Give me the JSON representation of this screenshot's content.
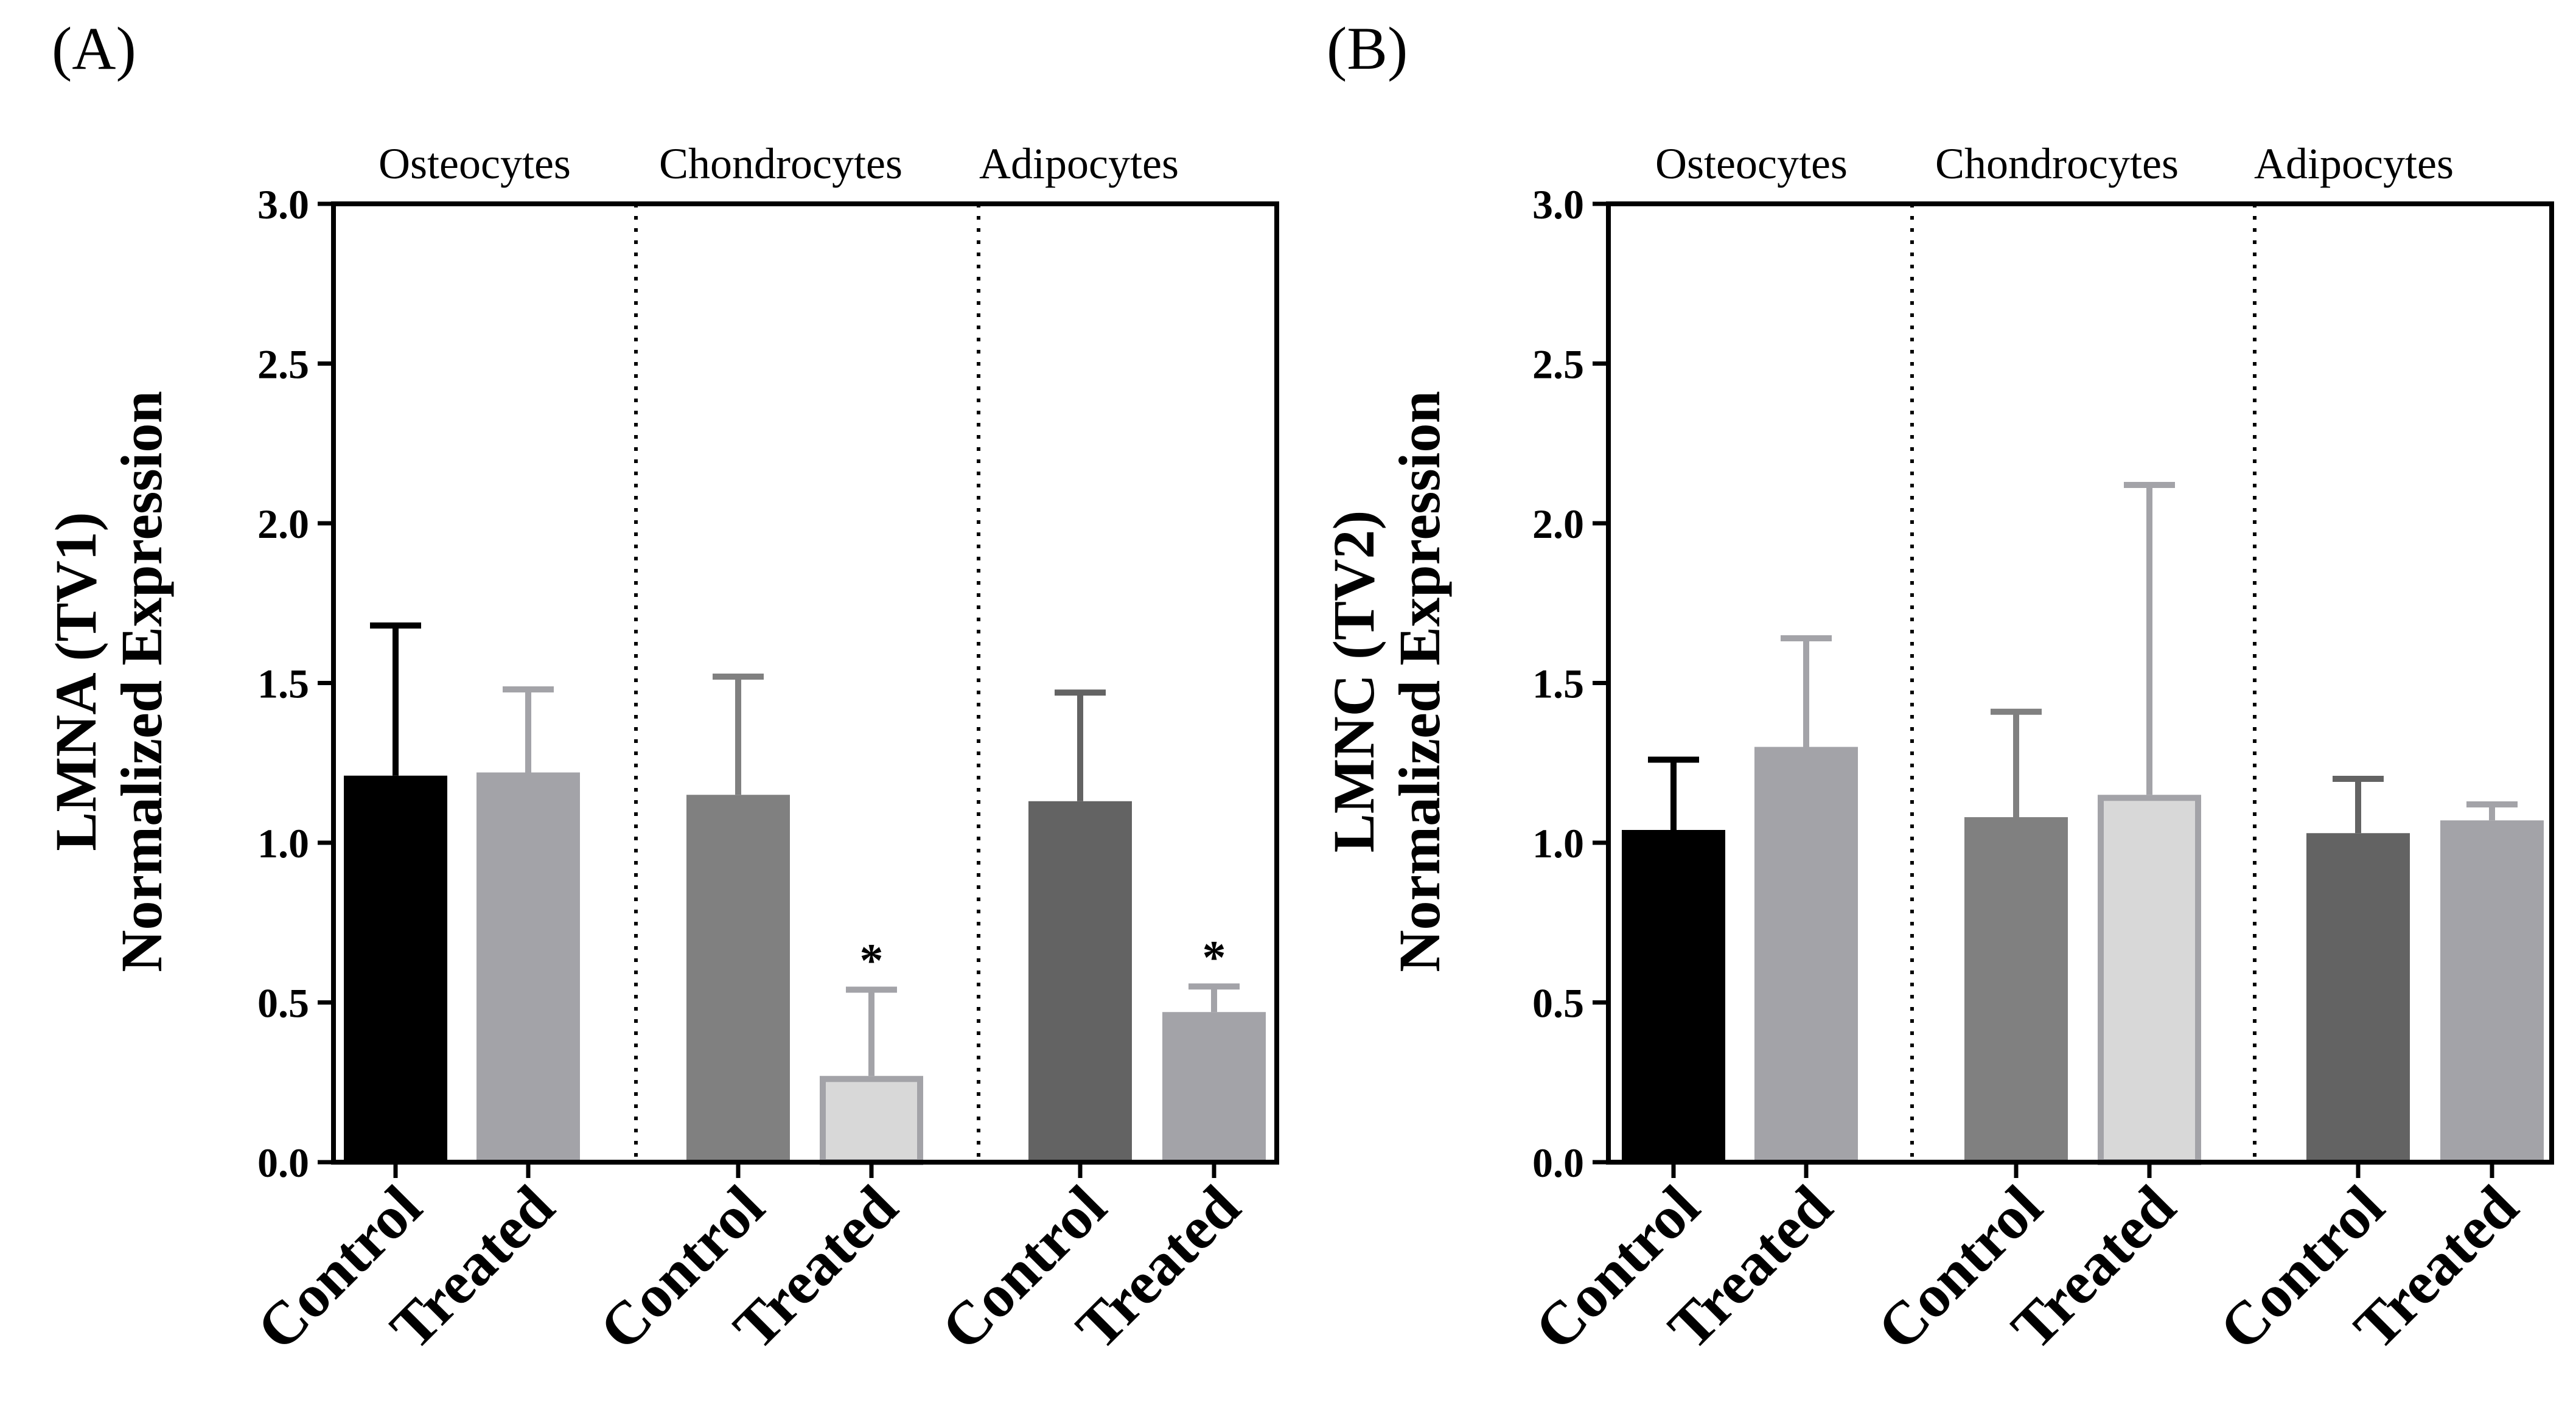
{
  "chart_data": [
    {
      "type": "bar",
      "panel_label": "(A)",
      "title": "",
      "ylabel_line1": "LMNA (TV1)",
      "ylabel_line2": "Normalized Expression",
      "xlabel": "",
      "ylim": [
        0,
        3
      ],
      "yticks": [
        "0.0",
        "0.5",
        "1.0",
        "1.5",
        "2.0",
        "2.5",
        "3.0"
      ],
      "groups": [
        "Osteocytes",
        "Chondrocytes",
        "Adipocytes"
      ],
      "categories": [
        "Control",
        "Treated",
        "Control",
        "Treated",
        "Control",
        "Treated"
      ],
      "values": [
        1.21,
        1.22,
        1.15,
        0.27,
        1.13,
        0.47
      ],
      "errors": [
        0.47,
        0.26,
        0.37,
        0.27,
        0.34,
        0.08
      ],
      "significance": [
        "",
        "",
        "",
        "*",
        "",
        "*"
      ],
      "fills": [
        "#000000",
        "#a3a3a8",
        "#808080",
        "#d8d8d8",
        "#636363",
        "#a3a3a8"
      ],
      "strokes": [
        "#000000",
        "#a3a3a8",
        "#808080",
        "#a3a3a8",
        "#636363",
        "#a3a3a8"
      ],
      "error_colors": [
        "#000000",
        "#a3a3a8",
        "#808080",
        "#a3a3a8",
        "#636363",
        "#a3a3a8"
      ],
      "grid": false
    },
    {
      "type": "bar",
      "panel_label": "(B)",
      "title": "",
      "ylabel_line1": "LMNC (TV2)",
      "ylabel_line2": "Normalized Expression",
      "xlabel": "",
      "ylim": [
        0,
        3
      ],
      "yticks": [
        "0.0",
        "0.5",
        "1.0",
        "1.5",
        "2.0",
        "2.5",
        "3.0"
      ],
      "groups": [
        "Osteocytes",
        "Chondrocytes",
        "Adipocytes"
      ],
      "categories": [
        "Control",
        "Treated",
        "Control",
        "Treated",
        "Control",
        "Treated"
      ],
      "values": [
        1.04,
        1.3,
        1.08,
        1.15,
        1.03,
        1.07
      ],
      "errors": [
        0.22,
        0.34,
        0.33,
        0.97,
        0.17,
        0.05
      ],
      "significance": [
        "",
        "",
        "",
        "",
        "",
        ""
      ],
      "fills": [
        "#000000",
        "#a3a3a8",
        "#808080",
        "#d8d8d8",
        "#636363",
        "#a3a3a8"
      ],
      "strokes": [
        "#000000",
        "#a3a3a8",
        "#808080",
        "#a3a3a8",
        "#636363",
        "#a3a3a8"
      ],
      "error_colors": [
        "#000000",
        "#a3a3a8",
        "#808080",
        "#a3a3a8",
        "#636363",
        "#a3a3a8"
      ],
      "grid": false
    }
  ]
}
